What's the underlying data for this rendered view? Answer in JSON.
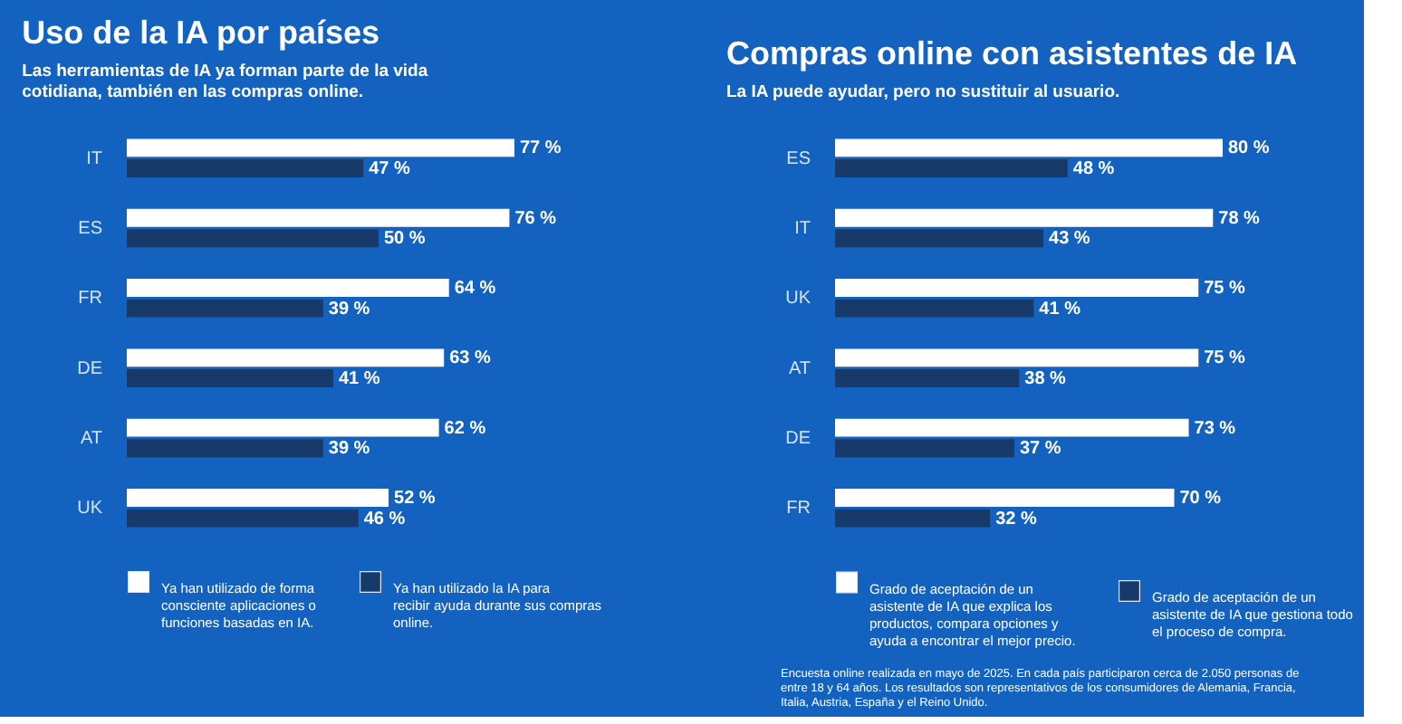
{
  "chart_data": [
    {
      "type": "bar",
      "orientation": "horizontal",
      "title": "Uso de la IA por países",
      "subtitle": "Las herramientas de IA ya forman parte de la vida cotidiana, también en las compras online.",
      "categories": [
        "IT",
        "ES",
        "FR",
        "DE",
        "AT",
        "UK"
      ],
      "series": [
        {
          "name": "Ya han utilizado de forma consciente aplicaciones o funciones basadas en IA.",
          "color": "#ffffff",
          "values": [
            77,
            76,
            64,
            63,
            62,
            52
          ],
          "value_labels": [
            "77 %",
            "76 %",
            "64 %",
            "63 %",
            "62 %",
            "52 %"
          ]
        },
        {
          "name": "Ya han utilizado la IA para recibir ayuda durante sus compras online.",
          "color": "#173a6a",
          "values": [
            47,
            50,
            39,
            41,
            39,
            46
          ],
          "value_labels": [
            "47 %",
            "50 %",
            "39 %",
            "41 %",
            "39 %",
            "46 %"
          ]
        }
      ],
      "tick_labels": "y",
      "legend": "bottom"
    },
    {
      "type": "bar",
      "orientation": "horizontal",
      "title": "Compras online con asistentes de IA",
      "subtitle": "La IA puede ayudar, pero no sustituir al usuario.",
      "categories": [
        "ES",
        "IT",
        "UK",
        "AT",
        "DE",
        "FR"
      ],
      "series": [
        {
          "name": "Grado de aceptación de un asistente de IA que explica los productos, compara opciones y ayuda a encontrar el mejor precio.",
          "color": "#ffffff",
          "values": [
            80,
            78,
            75,
            75,
            73,
            70
          ],
          "value_labels": [
            "80 %",
            "78 %",
            "75 %",
            "75 %",
            "73 %",
            "70 %"
          ]
        },
        {
          "name": "Grado de aceptación de un asistente de IA que gestiona todo el proceso de compra.",
          "color": "#173a6a",
          "values": [
            48,
            43,
            41,
            38,
            37,
            32
          ],
          "value_labels": [
            "48 %",
            "43 %",
            "41 %",
            "38 %",
            "37 %",
            "32 %"
          ]
        }
      ],
      "tick_labels": "y",
      "legend": "bottom",
      "annotations": [
        "Encuesta online realizada en mayo de 2025. En cada país participaron cerca de 2.050 personas de entre 18 y 64 años. Los resultados son representativos de los consumidores de Alemania, Francia, Italia, Austria, España y el Reino Unido."
      ]
    }
  ]
}
